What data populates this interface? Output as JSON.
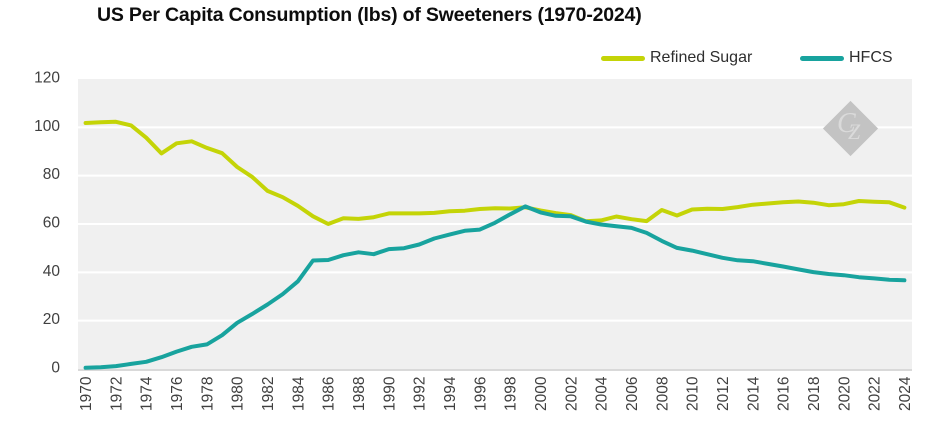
{
  "watermark": {
    "letter1": "C",
    "letter2": "Z"
  },
  "chart_data": {
    "type": "line",
    "title": "US Per Capita Consumption (lbs) of Sweeteners (1970-2024)",
    "xlabel": "",
    "ylabel": "",
    "ylim": [
      0,
      120
    ],
    "y_ticks": [
      0,
      20,
      40,
      60,
      80,
      100,
      120
    ],
    "x_tick_step": 2,
    "grid": true,
    "legend_position": "top-right",
    "plot_background": "#f0f0f0",
    "gridline_color": "#ffffff",
    "axis_line_color": "#d9d9d9",
    "tick_label_color": "#404040",
    "x": [
      1970,
      1971,
      1972,
      1973,
      1974,
      1975,
      1976,
      1977,
      1978,
      1979,
      1980,
      1981,
      1982,
      1983,
      1984,
      1985,
      1986,
      1987,
      1988,
      1989,
      1990,
      1991,
      1992,
      1993,
      1994,
      1995,
      1996,
      1997,
      1998,
      1999,
      2000,
      2001,
      2002,
      2003,
      2004,
      2005,
      2006,
      2007,
      2008,
      2009,
      2010,
      2011,
      2012,
      2013,
      2014,
      2015,
      2016,
      2017,
      2018,
      2019,
      2020,
      2021,
      2022,
      2023,
      2024
    ],
    "series": [
      {
        "name": "Refined Sugar",
        "color": "#c4d407",
        "values": [
          101.8,
          102.1,
          102.3,
          100.8,
          95.7,
          89.2,
          93.4,
          94.2,
          91.5,
          89.3,
          83.6,
          79.4,
          73.7,
          71.1,
          67.5,
          63.2,
          60.0,
          62.4,
          62.1,
          62.8,
          64.4,
          64.4,
          64.4,
          64.6,
          65.3,
          65.5,
          66.2,
          66.5,
          66.4,
          66.9,
          65.6,
          64.5,
          63.7,
          61.1,
          61.5,
          63.1,
          62.0,
          61.2,
          65.8,
          63.5,
          66.0,
          66.3,
          66.2,
          67.0,
          68.0,
          68.5,
          69.0,
          69.3,
          68.8,
          67.8,
          68.2,
          69.5,
          69.2,
          69.0,
          66.8
        ]
      },
      {
        "name": "HFCS",
        "color": "#18a39e",
        "values": [
          0.5,
          0.7,
          1.2,
          2.1,
          3.0,
          4.9,
          7.2,
          9.2,
          10.2,
          14.0,
          19.1,
          22.8,
          26.7,
          31.0,
          36.3,
          44.9,
          45.1,
          47.1,
          48.3,
          47.5,
          49.6,
          50.0,
          51.5,
          54.0,
          55.6,
          57.2,
          57.7,
          60.5,
          64.0,
          67.3,
          64.8,
          63.4,
          63.2,
          61.0,
          59.8,
          59.1,
          58.4,
          56.3,
          53.0,
          50.1,
          49.0,
          47.5,
          46.0,
          45.0,
          44.6,
          43.5,
          42.4,
          41.2,
          40.1,
          39.3,
          38.8,
          38.0,
          37.5,
          36.9,
          36.7
        ]
      }
    ]
  }
}
